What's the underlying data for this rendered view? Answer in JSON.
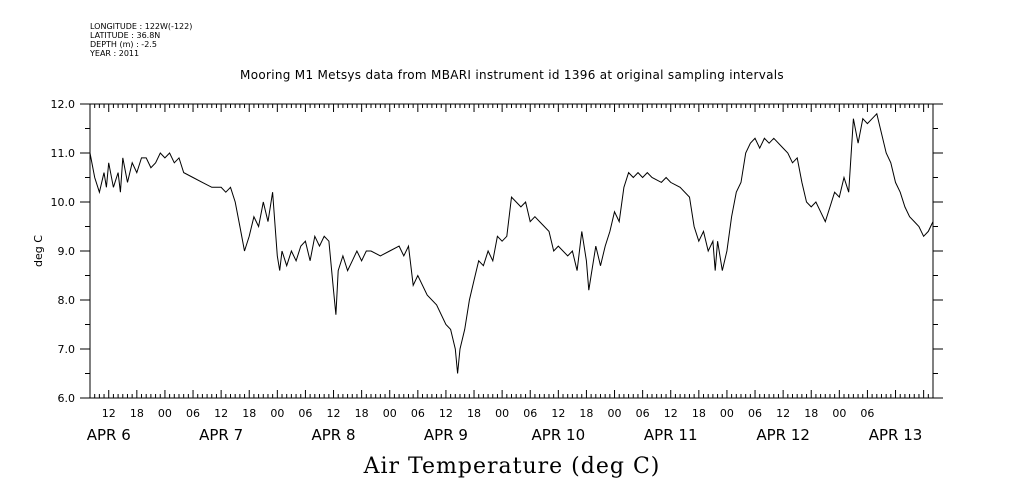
{
  "meta": {
    "longitude": "LONGITUDE : 122W(-122)",
    "latitude": "LATITUDE : 36.8N",
    "depth": "DEPTH (m) : -2.5",
    "year": "YEAR : 2011"
  },
  "title": "Mooring M1 Metsys data from MBARI instrument id 1396 at original sampling intervals",
  "bottom_title": "Air Temperature (deg C)",
  "chart_data": {
    "type": "line",
    "title": "Mooring M1 Metsys data from MBARI instrument id 1396 at original sampling intervals",
    "xlabel": "",
    "ylabel": "deg C",
    "ylim": [
      6.0,
      12.0
    ],
    "xlim_hours": [
      8,
      188
    ],
    "y_ticks": [
      "6.0",
      "7.0",
      "8.0",
      "9.0",
      "10.0",
      "11.0",
      "12.0"
    ],
    "x_hour_ticks": [
      "12",
      "18",
      "00",
      "06",
      "12",
      "18",
      "00",
      "06",
      "12",
      "18",
      "00",
      "06",
      "12",
      "18",
      "00",
      "06",
      "12",
      "18",
      "00",
      "06",
      "12",
      "18",
      "00",
      "06",
      "12",
      "18",
      "00",
      "06"
    ],
    "day_labels": [
      "APR 6",
      "APR 7",
      "APR 8",
      "APR 9",
      "APR 10",
      "APR 11",
      "APR 12",
      "APR 13"
    ],
    "grid": false,
    "series": [
      {
        "name": "",
        "points": [
          [
            8,
            11.0
          ],
          [
            9,
            10.5
          ],
          [
            10,
            10.2
          ],
          [
            11,
            10.6
          ],
          [
            11.5,
            10.3
          ],
          [
            12,
            10.8
          ],
          [
            13,
            10.3
          ],
          [
            14,
            10.6
          ],
          [
            14.5,
            10.2
          ],
          [
            15,
            10.9
          ],
          [
            16,
            10.4
          ],
          [
            17,
            10.8
          ],
          [
            18,
            10.6
          ],
          [
            19,
            10.9
          ],
          [
            20,
            10.9
          ],
          [
            21,
            10.7
          ],
          [
            22,
            10.8
          ],
          [
            23,
            11.0
          ],
          [
            24,
            10.9
          ],
          [
            25,
            11.0
          ],
          [
            26,
            10.8
          ],
          [
            27,
            10.9
          ],
          [
            28,
            10.6
          ],
          [
            30,
            10.5
          ],
          [
            32,
            10.4
          ],
          [
            34,
            10.3
          ],
          [
            36,
            10.3
          ],
          [
            37,
            10.2
          ],
          [
            38,
            10.3
          ],
          [
            39,
            10.0
          ],
          [
            40,
            9.5
          ],
          [
            41,
            9.0
          ],
          [
            42,
            9.3
          ],
          [
            43,
            9.7
          ],
          [
            44,
            9.5
          ],
          [
            45,
            10.0
          ],
          [
            46,
            9.6
          ],
          [
            47,
            10.2
          ],
          [
            48,
            8.9
          ],
          [
            48.5,
            8.6
          ],
          [
            49,
            9.0
          ],
          [
            50,
            8.7
          ],
          [
            51,
            9.0
          ],
          [
            52,
            8.8
          ],
          [
            53,
            9.1
          ],
          [
            54,
            9.2
          ],
          [
            55,
            8.8
          ],
          [
            56,
            9.3
          ],
          [
            57,
            9.1
          ],
          [
            58,
            9.3
          ],
          [
            59,
            9.2
          ],
          [
            60,
            8.2
          ],
          [
            60.5,
            7.7
          ],
          [
            61,
            8.6
          ],
          [
            62,
            8.9
          ],
          [
            63,
            8.6
          ],
          [
            64,
            8.8
          ],
          [
            65,
            9.0
          ],
          [
            66,
            8.8
          ],
          [
            67,
            9.0
          ],
          [
            68,
            9.0
          ],
          [
            70,
            8.9
          ],
          [
            72,
            9.0
          ],
          [
            74,
            9.1
          ],
          [
            75,
            8.9
          ],
          [
            76,
            9.1
          ],
          [
            77,
            8.3
          ],
          [
            78,
            8.5
          ],
          [
            80,
            8.1
          ],
          [
            82,
            7.9
          ],
          [
            84,
            7.5
          ],
          [
            85,
            7.4
          ],
          [
            86,
            7.0
          ],
          [
            86.5,
            6.5
          ],
          [
            87,
            7.0
          ],
          [
            88,
            7.4
          ],
          [
            89,
            8.0
          ],
          [
            90,
            8.4
          ],
          [
            91,
            8.8
          ],
          [
            92,
            8.7
          ],
          [
            93,
            9.0
          ],
          [
            94,
            8.8
          ],
          [
            95,
            9.3
          ],
          [
            96,
            9.2
          ],
          [
            97,
            9.3
          ],
          [
            98,
            10.1
          ],
          [
            99,
            10.0
          ],
          [
            100,
            9.9
          ],
          [
            101,
            10.0
          ],
          [
            102,
            9.6
          ],
          [
            103,
            9.7
          ],
          [
            104,
            9.6
          ],
          [
            106,
            9.4
          ],
          [
            107,
            9.0
          ],
          [
            108,
            9.1
          ],
          [
            110,
            8.9
          ],
          [
            111,
            9.0
          ],
          [
            112,
            8.6
          ],
          [
            113,
            9.4
          ],
          [
            114,
            8.8
          ],
          [
            114.5,
            8.2
          ],
          [
            115,
            8.5
          ],
          [
            116,
            9.1
          ],
          [
            117,
            8.7
          ],
          [
            118,
            9.1
          ],
          [
            119,
            9.4
          ],
          [
            120,
            9.8
          ],
          [
            121,
            9.6
          ],
          [
            122,
            10.3
          ],
          [
            123,
            10.6
          ],
          [
            124,
            10.5
          ],
          [
            125,
            10.6
          ],
          [
            126,
            10.5
          ],
          [
            127,
            10.6
          ],
          [
            128,
            10.5
          ],
          [
            130,
            10.4
          ],
          [
            131,
            10.5
          ],
          [
            132,
            10.4
          ],
          [
            134,
            10.3
          ],
          [
            136,
            10.1
          ],
          [
            137,
            9.5
          ],
          [
            138,
            9.2
          ],
          [
            139,
            9.4
          ],
          [
            140,
            9.0
          ],
          [
            141,
            9.2
          ],
          [
            141.5,
            8.6
          ],
          [
            142,
            9.2
          ],
          [
            143,
            8.6
          ],
          [
            144,
            9.0
          ],
          [
            145,
            9.7
          ],
          [
            146,
            10.2
          ],
          [
            147,
            10.4
          ],
          [
            148,
            11.0
          ],
          [
            149,
            11.2
          ],
          [
            150,
            11.3
          ],
          [
            151,
            11.1
          ],
          [
            152,
            11.3
          ],
          [
            153,
            11.2
          ],
          [
            154,
            11.3
          ],
          [
            156,
            11.1
          ],
          [
            157,
            11.0
          ],
          [
            158,
            10.8
          ],
          [
            159,
            10.9
          ],
          [
            160,
            10.4
          ],
          [
            161,
            10.0
          ],
          [
            162,
            9.9
          ],
          [
            163,
            10.0
          ],
          [
            164,
            9.8
          ],
          [
            165,
            9.6
          ],
          [
            166,
            9.9
          ],
          [
            167,
            10.2
          ],
          [
            168,
            10.1
          ],
          [
            169,
            10.5
          ],
          [
            170,
            10.2
          ],
          [
            171,
            11.7
          ],
          [
            172,
            11.2
          ],
          [
            173,
            11.7
          ],
          [
            174,
            11.6
          ],
          [
            175,
            11.7
          ],
          [
            176,
            11.8
          ],
          [
            177,
            11.4
          ],
          [
            178,
            11.0
          ],
          [
            179,
            10.8
          ],
          [
            180,
            10.4
          ],
          [
            181,
            10.2
          ],
          [
            182,
            9.9
          ],
          [
            183,
            9.7
          ],
          [
            184,
            9.6
          ],
          [
            185,
            9.5
          ],
          [
            186,
            9.3
          ],
          [
            187,
            9.4
          ],
          [
            188,
            9.6
          ]
        ]
      }
    ]
  }
}
